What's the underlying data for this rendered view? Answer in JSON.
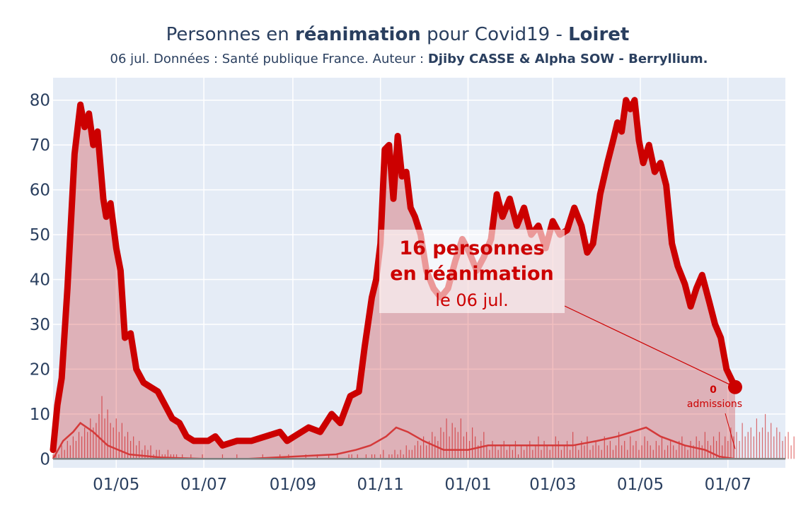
{
  "chart_data": {
    "type": "area",
    "title_parts": {
      "prefix": "Personnes en ",
      "bold1": "réanimation",
      "middle": " pour Covid19 - ",
      "bold2": "Loiret"
    },
    "subtitle_parts": {
      "prefix": "06 jul. Données : Santé publique France. Auteur : ",
      "bold": "Djiby CASSE & Alpha SOW - Berryllium."
    },
    "x_domain": [
      "2020-03-18",
      "2021-08-10"
    ],
    "ylim": [
      -2,
      85
    ],
    "y_ticks": [
      0,
      10,
      20,
      30,
      40,
      50,
      60,
      70,
      80
    ],
    "x_ticks": [
      {
        "date": "2020-05-01",
        "label": "01/05"
      },
      {
        "date": "2020-07-01",
        "label": "01/07"
      },
      {
        "date": "2020-09-01",
        "label": "01/09"
      },
      {
        "date": "2020-11-01",
        "label": "01/11"
      },
      {
        "date": "2021-01-01",
        "label": "01/01"
      },
      {
        "date": "2021-03-01",
        "label": "01/03"
      },
      {
        "date": "2021-05-01",
        "label": "01/05"
      },
      {
        "date": "2021-07-01",
        "label": "01/07"
      }
    ],
    "series": [
      {
        "name": "réanimation",
        "color": "#cc0000",
        "fill": "rgba(204,0,0,0.25)",
        "points": [
          [
            "2020-03-18",
            2
          ],
          [
            "2020-03-21",
            12
          ],
          [
            "2020-03-24",
            18
          ],
          [
            "2020-03-28",
            38
          ],
          [
            "2020-04-02",
            68
          ],
          [
            "2020-04-06",
            79
          ],
          [
            "2020-04-09",
            74
          ],
          [
            "2020-04-12",
            77
          ],
          [
            "2020-04-15",
            70
          ],
          [
            "2020-04-18",
            73
          ],
          [
            "2020-04-22",
            58
          ],
          [
            "2020-04-24",
            54
          ],
          [
            "2020-04-27",
            57
          ],
          [
            "2020-05-01",
            47
          ],
          [
            "2020-05-04",
            42
          ],
          [
            "2020-05-07",
            27
          ],
          [
            "2020-05-11",
            28
          ],
          [
            "2020-05-15",
            20
          ],
          [
            "2020-05-20",
            17
          ],
          [
            "2020-05-25",
            16
          ],
          [
            "2020-05-30",
            15
          ],
          [
            "2020-06-04",
            12
          ],
          [
            "2020-06-09",
            9
          ],
          [
            "2020-06-14",
            8
          ],
          [
            "2020-06-19",
            5
          ],
          [
            "2020-06-24",
            4
          ],
          [
            "2020-07-04",
            4
          ],
          [
            "2020-07-09",
            5
          ],
          [
            "2020-07-14",
            3
          ],
          [
            "2020-07-24",
            4
          ],
          [
            "2020-08-03",
            4
          ],
          [
            "2020-08-13",
            5
          ],
          [
            "2020-08-23",
            6
          ],
          [
            "2020-08-28",
            4
          ],
          [
            "2020-09-02",
            5
          ],
          [
            "2020-09-12",
            7
          ],
          [
            "2020-09-20",
            6
          ],
          [
            "2020-09-28",
            10
          ],
          [
            "2020-10-04",
            8
          ],
          [
            "2020-10-11",
            14
          ],
          [
            "2020-10-17",
            15
          ],
          [
            "2020-10-21",
            25
          ],
          [
            "2020-10-26",
            36
          ],
          [
            "2020-10-29",
            40
          ],
          [
            "2020-11-01",
            48
          ],
          [
            "2020-11-04",
            69
          ],
          [
            "2020-11-07",
            70
          ],
          [
            "2020-11-10",
            58
          ],
          [
            "2020-11-13",
            72
          ],
          [
            "2020-11-16",
            63
          ],
          [
            "2020-11-19",
            64
          ],
          [
            "2020-11-22",
            56
          ],
          [
            "2020-11-25",
            54
          ],
          [
            "2020-11-29",
            50
          ],
          [
            "2020-12-03",
            42
          ],
          [
            "2020-12-08",
            38
          ],
          [
            "2020-12-13",
            36
          ],
          [
            "2020-12-18",
            38
          ],
          [
            "2020-12-23",
            44
          ],
          [
            "2020-12-28",
            49
          ],
          [
            "2021-01-02",
            46
          ],
          [
            "2021-01-07",
            42
          ],
          [
            "2021-01-12",
            45
          ],
          [
            "2021-01-17",
            49
          ],
          [
            "2021-01-21",
            59
          ],
          [
            "2021-01-25",
            54
          ],
          [
            "2021-01-30",
            58
          ],
          [
            "2021-02-04",
            52
          ],
          [
            "2021-02-09",
            56
          ],
          [
            "2021-02-14",
            50
          ],
          [
            "2021-02-19",
            52
          ],
          [
            "2021-02-24",
            47
          ],
          [
            "2021-03-01",
            53
          ],
          [
            "2021-03-06",
            50
          ],
          [
            "2021-03-11",
            51
          ],
          [
            "2021-03-16",
            56
          ],
          [
            "2021-03-21",
            52
          ],
          [
            "2021-03-25",
            46
          ],
          [
            "2021-03-29",
            48
          ],
          [
            "2021-04-03",
            59
          ],
          [
            "2021-04-08",
            66
          ],
          [
            "2021-04-12",
            71
          ],
          [
            "2021-04-15",
            75
          ],
          [
            "2021-04-18",
            73
          ],
          [
            "2021-04-21",
            80
          ],
          [
            "2021-04-24",
            78
          ],
          [
            "2021-04-27",
            80
          ],
          [
            "2021-04-30",
            71
          ],
          [
            "2021-05-03",
            66
          ],
          [
            "2021-05-07",
            70
          ],
          [
            "2021-05-11",
            64
          ],
          [
            "2021-05-15",
            66
          ],
          [
            "2021-05-19",
            61
          ],
          [
            "2021-05-23",
            48
          ],
          [
            "2021-05-27",
            43
          ],
          [
            "2021-06-01",
            39
          ],
          [
            "2021-06-05",
            34
          ],
          [
            "2021-06-09",
            38
          ],
          [
            "2021-06-13",
            41
          ],
          [
            "2021-06-18",
            35
          ],
          [
            "2021-06-22",
            30
          ],
          [
            "2021-06-26",
            27
          ],
          [
            "2021-06-30",
            20
          ],
          [
            "2021-07-03",
            18
          ],
          [
            "2021-07-06",
            16
          ]
        ]
      },
      {
        "name": "admissions",
        "color": "#d43a3a",
        "points": [
          [
            "2020-03-18",
            0
          ],
          [
            "2020-03-25",
            4
          ],
          [
            "2020-04-01",
            6
          ],
          [
            "2020-04-06",
            8
          ],
          [
            "2020-04-15",
            6
          ],
          [
            "2020-04-25",
            3
          ],
          [
            "2020-05-10",
            1
          ],
          [
            "2020-06-01",
            0.3
          ],
          [
            "2020-07-01",
            0
          ],
          [
            "2020-08-01",
            0
          ],
          [
            "2020-09-01",
            0.5
          ],
          [
            "2020-10-01",
            1
          ],
          [
            "2020-10-15",
            2
          ],
          [
            "2020-10-25",
            3
          ],
          [
            "2020-11-05",
            5
          ],
          [
            "2020-11-12",
            7
          ],
          [
            "2020-11-20",
            6
          ],
          [
            "2020-12-01",
            4
          ],
          [
            "2020-12-15",
            2
          ],
          [
            "2021-01-01",
            2
          ],
          [
            "2021-01-15",
            3
          ],
          [
            "2021-02-01",
            3
          ],
          [
            "2021-02-15",
            3
          ],
          [
            "2021-03-01",
            3
          ],
          [
            "2021-03-15",
            3
          ],
          [
            "2021-04-01",
            4
          ],
          [
            "2021-04-15",
            5
          ],
          [
            "2021-04-25",
            6
          ],
          [
            "2021-05-05",
            7
          ],
          [
            "2021-05-15",
            5
          ],
          [
            "2021-06-01",
            3
          ],
          [
            "2021-06-15",
            2
          ],
          [
            "2021-06-25",
            0.5
          ],
          [
            "2021-07-06",
            0
          ]
        ]
      }
    ],
    "daily_bars": {
      "color": "rgba(204,0,0,0.55)",
      "start": "2020-03-18",
      "values": [
        1,
        2,
        1,
        3,
        2,
        4,
        3,
        5,
        4,
        6,
        5,
        7,
        6,
        9,
        7,
        8,
        10,
        14,
        9,
        11,
        8,
        7,
        9,
        6,
        8,
        5,
        6,
        4,
        5,
        3,
        4,
        2,
        3,
        2,
        3,
        1,
        2,
        2,
        1,
        1,
        2,
        1,
        1,
        1,
        0,
        1,
        0,
        0,
        1,
        0,
        0,
        0,
        1,
        0,
        0,
        0,
        0,
        0,
        0,
        1,
        0,
        0,
        0,
        0,
        1,
        0,
        0,
        0,
        0,
        0,
        0,
        0,
        0,
        1,
        0,
        0,
        0,
        0,
        0,
        1,
        0,
        0,
        1,
        0,
        0,
        0,
        0,
        0,
        1,
        0,
        0,
        0,
        1,
        0,
        0,
        0,
        1,
        0,
        0,
        1,
        0,
        0,
        0,
        1,
        1,
        0,
        1,
        0,
        0,
        1,
        0,
        1,
        1,
        0,
        1,
        2,
        0,
        1,
        1,
        2,
        1,
        2,
        1,
        3,
        2,
        2,
        3,
        4,
        3,
        5,
        3,
        4,
        6,
        5,
        4,
        7,
        6,
        9,
        5,
        8,
        7,
        6,
        9,
        5,
        6,
        4,
        7,
        5,
        3,
        4,
        6,
        3,
        2,
        4,
        3,
        2,
        3,
        4,
        2,
        3,
        2,
        4,
        1,
        3,
        2,
        3,
        4,
        2,
        3,
        5,
        2,
        4,
        3,
        2,
        3,
        5,
        4,
        2,
        3,
        4,
        2,
        6,
        3,
        2,
        4,
        3,
        5,
        2,
        3,
        4,
        3,
        2,
        5,
        3,
        4,
        2,
        3,
        6,
        3,
        4,
        2,
        5,
        3,
        4,
        2,
        3,
        5,
        4,
        3,
        2,
        4,
        3,
        5,
        2,
        3,
        4,
        3,
        2,
        4,
        5,
        3,
        2,
        4,
        3,
        5,
        4,
        3,
        6,
        4,
        3,
        5,
        4,
        6,
        3,
        5,
        4,
        7,
        5,
        6,
        4,
        8,
        5,
        6,
        7,
        5,
        9,
        6,
        7,
        10,
        6,
        8,
        5,
        7,
        6,
        4,
        5,
        6,
        3,
        5,
        4,
        3,
        4,
        2,
        3,
        4,
        2,
        3,
        1,
        2,
        3,
        1,
        2,
        1,
        2,
        1,
        0,
        1,
        1,
        0,
        1,
        0,
        0,
        1,
        0,
        0,
        0
      ]
    },
    "annotation": {
      "line1": "16 personnes",
      "line2": "en réanimation",
      "line3": "le 06 jul.",
      "target_date": "2021-07-06",
      "target_value": 16
    },
    "admissions_label": {
      "value": "0",
      "text": "admissions",
      "target_date": "2021-07-06",
      "target_value": 0
    },
    "colors": {
      "plot_bg": "#e5ecf6",
      "grid": "#ffffff",
      "main": "#cc0000",
      "text": "#2a3f5f"
    }
  }
}
